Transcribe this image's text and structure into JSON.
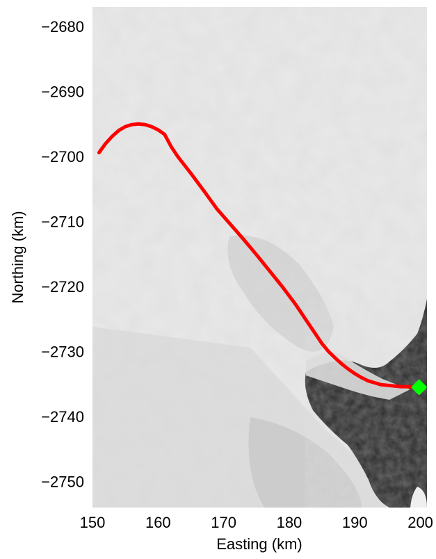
{
  "chart_data": {
    "type": "line",
    "title": "",
    "xlabel": "Easting (km)",
    "ylabel": "Northing (km)",
    "xlim": [
      150,
      201
    ],
    "ylim": [
      -2754,
      -2677
    ],
    "xticks": [
      150,
      160,
      170,
      180,
      190,
      200
    ],
    "yticks": [
      -2680,
      -2690,
      -2700,
      -2710,
      -2720,
      -2730,
      -2740,
      -2750
    ],
    "grid": false,
    "background": "grayscale satellite image of glacier terrain",
    "series": [
      {
        "color": "#ff0000",
        "x": [
          151,
          152,
          153,
          154,
          155,
          156,
          157,
          158,
          159,
          160,
          161,
          162,
          163,
          165,
          167,
          169,
          171,
          173,
          175,
          177,
          179,
          181,
          183,
          184,
          185,
          186,
          187,
          188,
          189,
          190,
          191,
          192,
          193,
          194,
          195,
          196,
          197,
          198,
          199,
          199.8
        ],
        "y": [
          -2699.4,
          -2698.0,
          -2696.9,
          -2696.0,
          -2695.4,
          -2695.1,
          -2695.0,
          -2695.1,
          -2695.4,
          -2695.9,
          -2696.6,
          -2698.5,
          -2700.0,
          -2702.6,
          -2705.3,
          -2708.1,
          -2710.4,
          -2712.7,
          -2715.1,
          -2717.6,
          -2720.1,
          -2722.8,
          -2725.8,
          -2727.3,
          -2728.8,
          -2730.0,
          -2731.0,
          -2731.9,
          -2732.7,
          -2733.4,
          -2734.0,
          -2734.5,
          -2734.8,
          -2735.1,
          -2735.2,
          -2735.3,
          -2735.4,
          -2735.4,
          -2735.5,
          -2735.5
        ]
      }
    ],
    "marker": {
      "x": 199.8,
      "y": -2735.5,
      "color": "#00ff00",
      "shape": "diamond"
    }
  }
}
